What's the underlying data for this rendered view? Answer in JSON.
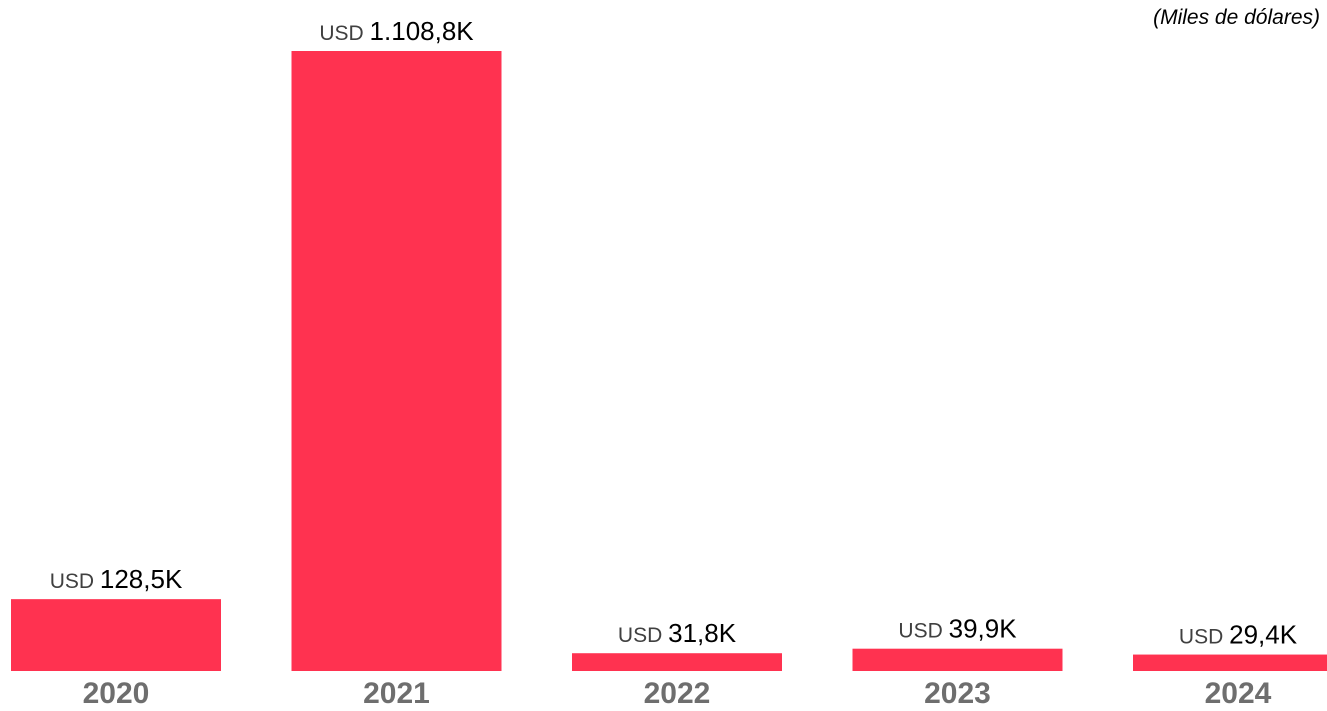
{
  "chart_data": {
    "type": "bar",
    "unit_note": "(Miles de dólares)",
    "categories": [
      "2020",
      "2021",
      "2022",
      "2023",
      "2024"
    ],
    "values": [
      128.5,
      1108.8,
      31.8,
      39.9,
      29.4
    ],
    "value_prefix": "USD",
    "value_labels": [
      "128,5K",
      "1.108,8K",
      "31,8K",
      "39,9K",
      "29,4K"
    ],
    "bar_color": "#FF3250",
    "grid": false,
    "legend": "none"
  }
}
